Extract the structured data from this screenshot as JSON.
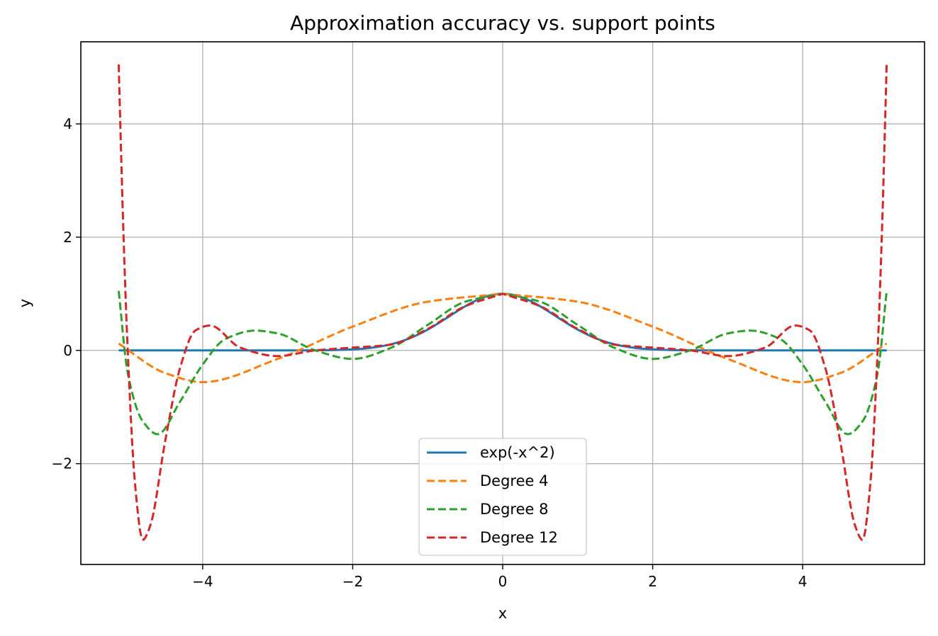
{
  "chart_data": {
    "type": "line",
    "title": "Approximation accuracy vs. support points",
    "xlabel": "x",
    "ylabel": "y",
    "xlim": [
      -5.625,
      5.625
    ],
    "ylim": [
      -3.78,
      5.45
    ],
    "xticks": [
      -4,
      -2,
      0,
      2,
      4
    ],
    "xtick_labels": [
      "−4",
      "−2",
      "0",
      "2",
      "4"
    ],
    "yticks": [
      -2,
      0,
      2,
      4
    ],
    "ytick_labels": [
      "−2",
      "0",
      "2",
      "4"
    ],
    "grid": true,
    "legend_position": "lower center",
    "x_range": [
      -5.12,
      5.12
    ],
    "series": [
      {
        "name": "exp(-x^2)",
        "color": "#1f77b4",
        "style": "solid",
        "function": "exp(-x^2)"
      },
      {
        "name": "Degree 4",
        "color": "#ff7f0e",
        "style": "dashed",
        "samples": [
          [
            0,
            1.0
          ],
          [
            1,
            0.86
          ],
          [
            2,
            0.42
          ],
          [
            3,
            -0.15
          ],
          [
            4,
            -0.56
          ],
          [
            4.5,
            -0.4
          ],
          [
            5.12,
            0.12
          ]
        ]
      },
      {
        "name": "Degree 8",
        "color": "#2ca02c",
        "style": "dashed",
        "samples": [
          [
            0,
            1.0
          ],
          [
            0.5,
            0.86
          ],
          [
            1,
            0.45
          ],
          [
            1.5,
            0.04
          ],
          [
            2,
            -0.15
          ],
          [
            2.5,
            0.0
          ],
          [
            3,
            0.3
          ],
          [
            3.3,
            0.35
          ],
          [
            3.7,
            0.2
          ],
          [
            4,
            -0.25
          ],
          [
            4.3,
            -0.9
          ],
          [
            4.6,
            -1.48
          ],
          [
            4.8,
            -1.25
          ],
          [
            5.0,
            -0.4
          ],
          [
            5.12,
            1.05
          ]
        ]
      },
      {
        "name": "Degree 12",
        "color": "#d62728",
        "style": "dashed",
        "samples": [
          [
            0,
            1.0
          ],
          [
            0.5,
            0.78
          ],
          [
            1,
            0.38
          ],
          [
            1.5,
            0.1
          ],
          [
            2,
            0.05
          ],
          [
            2.5,
            0.0
          ],
          [
            3,
            -0.1
          ],
          [
            3.5,
            0.05
          ],
          [
            3.9,
            0.44
          ],
          [
            4.1,
            0.35
          ],
          [
            4.3,
            -0.3
          ],
          [
            4.5,
            -1.6
          ],
          [
            4.7,
            -3.1
          ],
          [
            4.8,
            -3.35
          ],
          [
            4.9,
            -2.4
          ],
          [
            5.0,
            0.0
          ],
          [
            5.06,
            2.2
          ],
          [
            5.12,
            5.05
          ]
        ]
      }
    ]
  }
}
